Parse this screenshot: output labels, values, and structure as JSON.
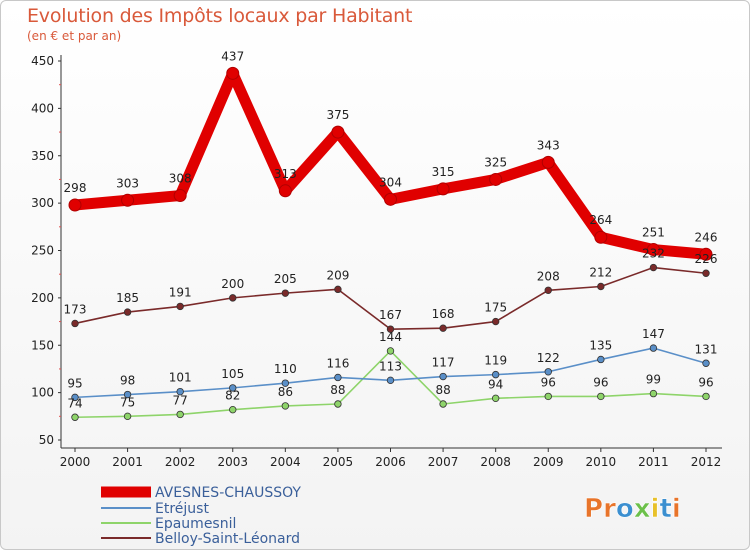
{
  "title": "Evolution des Impôts locaux par Habitant",
  "subtitle": "(en € et par an)",
  "logo": "Proxiti",
  "chart_data": {
    "type": "line",
    "title": "Evolution des Impôts locaux par Habitant",
    "ylabel": "(en € et par an)",
    "xlabel": "",
    "x": [
      "2000",
      "2001",
      "2002",
      "2003",
      "2004",
      "2005",
      "2006",
      "2007",
      "2008",
      "2009",
      "2010",
      "2011",
      "2012"
    ],
    "ylim": [
      50,
      450
    ],
    "yticks": [
      50,
      100,
      150,
      200,
      250,
      300,
      350,
      400,
      450
    ],
    "grid": false,
    "legend": "bottom-left",
    "series": [
      {
        "name": "AVESNES-CHAUSSOY",
        "color": "#e00000",
        "values": [
          298,
          303,
          308,
          437,
          313,
          375,
          304,
          315,
          325,
          343,
          264,
          251,
          246
        ]
      },
      {
        "name": "Etréjust",
        "color": "#5a8fc8",
        "values": [
          95,
          98,
          101,
          105,
          110,
          116,
          113,
          117,
          119,
          122,
          135,
          147,
          131
        ]
      },
      {
        "name": "Epaumesnil",
        "color": "#8ed46a",
        "values": [
          74,
          75,
          77,
          82,
          86,
          88,
          144,
          88,
          94,
          96,
          96,
          99,
          96
        ]
      },
      {
        "name": "Belloy-Saint-Léonard",
        "color": "#7a2a2a",
        "values": [
          173,
          185,
          191,
          200,
          205,
          209,
          167,
          168,
          175,
          208,
          212,
          232,
          226
        ]
      }
    ]
  }
}
